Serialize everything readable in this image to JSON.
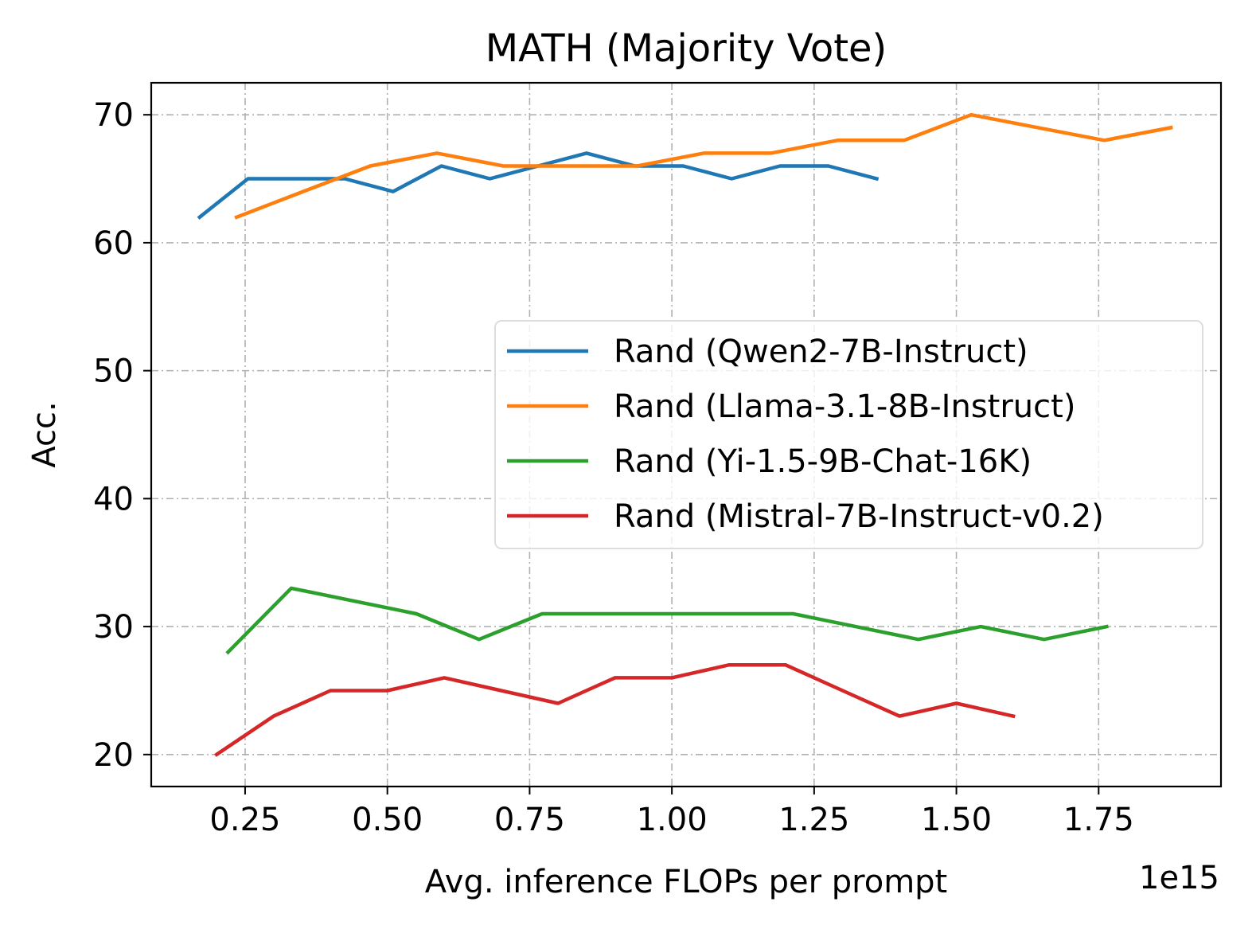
{
  "chart_data": {
    "type": "line",
    "title": "MATH (Majority Vote)",
    "xlabel": "Avg. inference FLOPs per prompt",
    "ylabel": "Acc.",
    "x_offset_text": "1e15",
    "xlim": [
      0.085,
      1.965
    ],
    "ylim": [
      17.5,
      72.5
    ],
    "xticks": [
      0.25,
      0.5,
      0.75,
      1.0,
      1.25,
      1.5,
      1.75
    ],
    "xtick_labels": [
      "0.25",
      "0.50",
      "0.75",
      "1.00",
      "1.25",
      "1.50",
      "1.75"
    ],
    "yticks": [
      20,
      30,
      40,
      50,
      60,
      70
    ],
    "ytick_labels": [
      "20",
      "30",
      "40",
      "50",
      "60",
      "70"
    ],
    "grid": true,
    "legend_position": "center-right",
    "series": [
      {
        "name": "Rand (Qwen2-7B-Instruct)",
        "color": "#1f77b4",
        "x": [
          0.17,
          0.255,
          0.34,
          0.425,
          0.51,
          0.595,
          0.68,
          0.765,
          0.85,
          0.935,
          1.02,
          1.105,
          1.19,
          1.275,
          1.36
        ],
        "y": [
          62,
          65,
          65,
          65,
          64,
          66,
          65,
          66,
          67,
          66,
          66,
          65,
          66,
          66,
          65
        ]
      },
      {
        "name": "Rand (Llama-3.1-8B-Instruct)",
        "color": "#ff7f0e",
        "x": [
          0.235,
          0.352,
          0.47,
          0.587,
          0.704,
          0.822,
          0.939,
          1.056,
          1.174,
          1.291,
          1.408,
          1.526,
          1.643,
          1.76,
          1.877
        ],
        "y": [
          62,
          64,
          66,
          67,
          66,
          66,
          66,
          67,
          67,
          68,
          68,
          70,
          69,
          68,
          69
        ]
      },
      {
        "name": "Rand (Yi-1.5-9B-Chat-16K)",
        "color": "#2ca02c",
        "x": [
          0.22,
          0.331,
          0.441,
          0.551,
          0.661,
          0.772,
          0.882,
          0.992,
          1.102,
          1.213,
          1.323,
          1.433,
          1.543,
          1.654,
          1.764
        ],
        "y": [
          28,
          33,
          32,
          31,
          29,
          31,
          31,
          31,
          31,
          31,
          30,
          29,
          30,
          29,
          30
        ]
      },
      {
        "name": "Rand (Mistral-7B-Instruct-v0.2)",
        "color": "#d62728",
        "x": [
          0.2,
          0.3,
          0.4,
          0.5,
          0.6,
          0.7,
          0.8,
          0.9,
          1.0,
          1.1,
          1.2,
          1.3,
          1.4,
          1.5,
          1.6
        ],
        "y": [
          20,
          23,
          25,
          25,
          26,
          25,
          24,
          26,
          26,
          27,
          27,
          25,
          23,
          24,
          23
        ]
      }
    ]
  }
}
